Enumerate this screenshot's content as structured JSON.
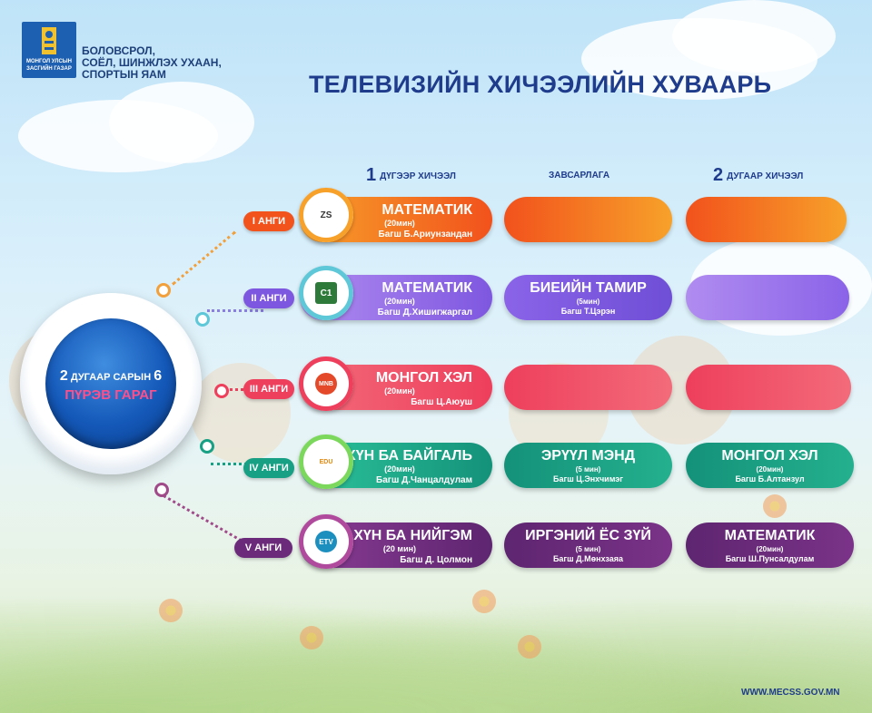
{
  "logo": {
    "caption": "МОНГОЛ УЛСЫН\nЗАСГИЙН ГАЗАР"
  },
  "ministry": [
    "БОЛОВСРОЛ,",
    "СОЁЛ, ШИНЖЛЭХ УХААН,",
    "СПОРТЫН ЯАМ"
  ],
  "title": "ТЕЛЕВИЗИЙН ХИЧЭЭЛИЙН ХУВААРЬ",
  "columns": {
    "first": {
      "num": "1",
      "label": "ДҮГЭЭР ХИЧЭЭЛ"
    },
    "break": {
      "label": "ЗАВСАРЛАГА"
    },
    "second": {
      "num": "2",
      "label": "ДУГААР ХИЧЭЭЛ"
    }
  },
  "date": {
    "month": "2",
    "month_label": "ДУГААР САРЫН",
    "day": "6",
    "weekday": "ПҮРЭВ ГАРАГ"
  },
  "rows": [
    {
      "grade": "I АНГИ",
      "color": "#f2521c",
      "channel": "ZS",
      "lesson1": {
        "subject": "МАТЕМАТИК",
        "duration": "(20мин)",
        "teacher": "Багш Б.Ариунзандан"
      },
      "break": null,
      "lesson2": null
    },
    {
      "grade": "II АНГИ",
      "color": "#7e57e0",
      "channel": "C1",
      "lesson1": {
        "subject": "МАТЕМАТИК",
        "duration": "(20мин)",
        "teacher": "Багш Д.Хишигжаргал"
      },
      "break": {
        "subject": "БИЕИЙН ТАМИР",
        "duration": "(5мин)",
        "teacher": "Багш Т.Цэрэн"
      },
      "lesson2": null
    },
    {
      "grade": "III АНГИ",
      "color": "#ee3f5c",
      "channel": "MNB",
      "lesson1": {
        "subject": "МОНГОЛ ХЭЛ",
        "duration": "(20мин)",
        "teacher": "Багш Ц.Аюуш"
      },
      "break": null,
      "lesson2": null
    },
    {
      "grade": "IV АНГИ",
      "color": "#18a084",
      "channel": "EDU",
      "lesson1": {
        "subject": "ХҮН БА БАЙГАЛЬ",
        "duration": "(20мин)",
        "teacher": "Багш Д.Чанцалдулам"
      },
      "break": {
        "subject": "ЭРҮҮЛ МЭНД",
        "duration": "(5 мин)",
        "teacher": "Багш Ц.Энхчимэг"
      },
      "lesson2": {
        "subject": "МОНГОЛ ХЭЛ",
        "duration": "(20мин)",
        "teacher": "Багш Б.Алтанзул"
      }
    },
    {
      "grade": "V АНГИ",
      "color": "#6b2a7a",
      "channel": "ETV",
      "lesson1": {
        "subject": "ХҮН БА НИЙГЭМ",
        "duration": "(20 мин)",
        "teacher": "Багш Д. Цолмон"
      },
      "break": {
        "subject": "ИРГЭНИЙ ЁС ЗҮЙ",
        "duration": "(5 мин)",
        "teacher": "Багш Д.Мөнхзаяа"
      },
      "lesson2": {
        "subject": "МАТЕМАТИК",
        "duration": "(20мин)",
        "teacher": "Багш Ш.Пунсалдулам"
      }
    }
  ],
  "website": "WWW.MECSS.GOV.MN"
}
